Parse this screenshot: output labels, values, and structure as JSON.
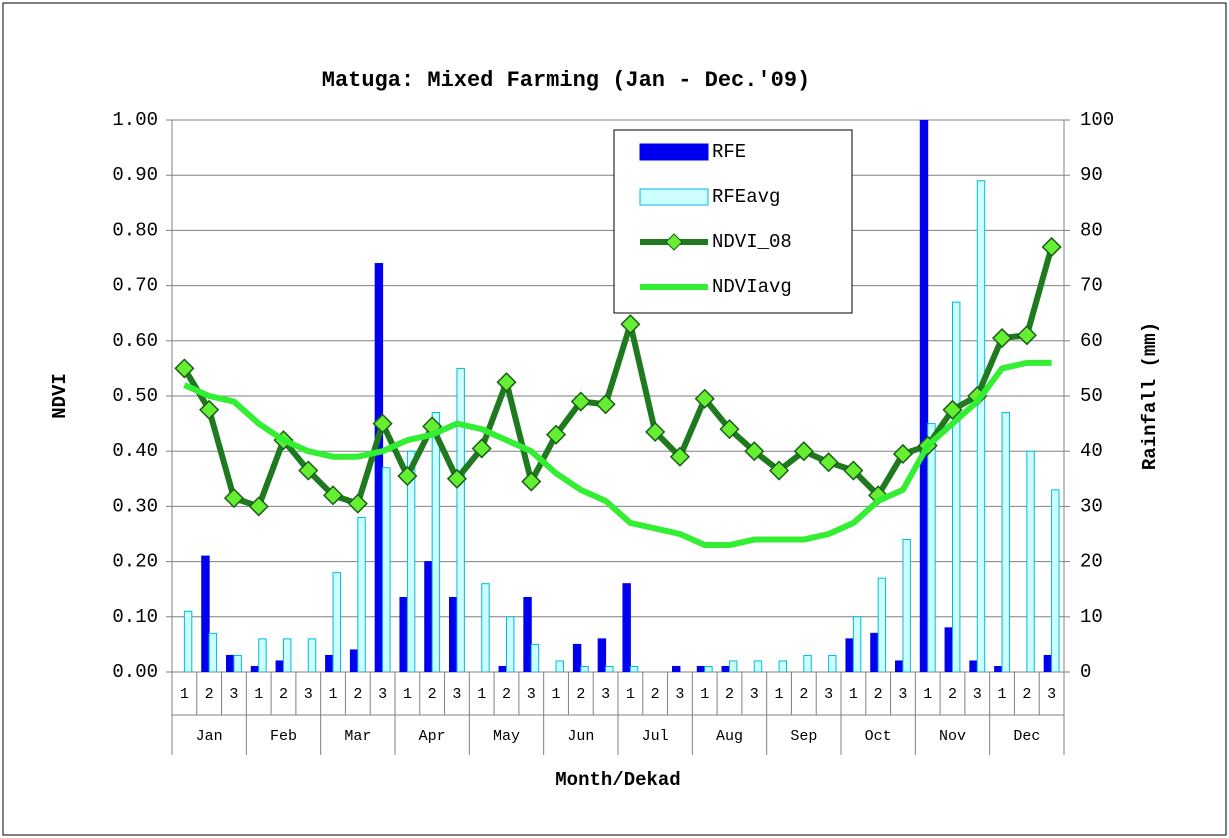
{
  "chart_data": {
    "type": "combo",
    "title": "Matuga: Mixed Farming (Jan - Dec.'09)",
    "y_label": "NDVI",
    "y2_label": "Rainfall (mm)",
    "x_label": "Month/Dekad",
    "categories": [
      "1",
      "2",
      "3",
      "1",
      "2",
      "3",
      "1",
      "2",
      "3",
      "1",
      "2",
      "3",
      "1",
      "2",
      "3",
      "1",
      "2",
      "3",
      "1",
      "2",
      "3",
      "1",
      "2",
      "3",
      "1",
      "2",
      "3",
      "1",
      "2",
      "3",
      "1",
      "2",
      "3",
      "1",
      "2",
      "3"
    ],
    "groups": [
      "Jan",
      "Feb",
      "Mar",
      "Apr",
      "May",
      "Jun",
      "Jul",
      "Aug",
      "Sep",
      "Oct",
      "Nov",
      "Dec"
    ],
    "ylim": [
      0,
      1
    ],
    "yticks": [
      {
        "value": 0,
        "label": "0.00"
      },
      {
        "value": 0.1,
        "label": "0.10"
      },
      {
        "value": 0.2,
        "label": "0.20"
      },
      {
        "value": 0.3,
        "label": "0.30"
      },
      {
        "value": 0.4,
        "label": "0.40"
      },
      {
        "value": 0.5,
        "label": "0.50"
      },
      {
        "value": 0.6,
        "label": "0.60"
      },
      {
        "value": 0.7,
        "label": "0.70"
      },
      {
        "value": 0.8,
        "label": "0.80"
      },
      {
        "value": 0.9,
        "label": "0.90"
      },
      {
        "value": 1,
        "label": "1.00"
      }
    ],
    "y2lim": [
      0,
      100
    ],
    "y2ticks": [
      0,
      10,
      20,
      30,
      40,
      50,
      60,
      70,
      80,
      90,
      100
    ],
    "grid": true,
    "legend_position": "top-right",
    "series": [
      {
        "name": "RFE",
        "type": "bar",
        "axis": "y2",
        "color": "#0000ee",
        "values": [
          0,
          21,
          3,
          1,
          2,
          0,
          3,
          4,
          74,
          13.5,
          20,
          13.5,
          0,
          1,
          13.5,
          0,
          5,
          6,
          16,
          0,
          1,
          1,
          1,
          0,
          0,
          0,
          0,
          6,
          7,
          2,
          102,
          8,
          2,
          1,
          0,
          3
        ]
      },
      {
        "name": "RFEavg",
        "type": "bar",
        "axis": "y2",
        "color": "#ccffff",
        "values": [
          11,
          7,
          3,
          6,
          6,
          6,
          18,
          28,
          37,
          40,
          47,
          55,
          16,
          10,
          5,
          2,
          1,
          1,
          1,
          0,
          0,
          1,
          2,
          2,
          2,
          3,
          3,
          10,
          17,
          24,
          45,
          67,
          89,
          47,
          40,
          33
        ]
      },
      {
        "name": "NDVI_08",
        "type": "line",
        "axis": "y",
        "color": "#1f7a1f",
        "values": [
          0.55,
          0.475,
          0.315,
          0.3,
          0.42,
          0.365,
          0.32,
          0.305,
          0.45,
          0.355,
          0.445,
          0.35,
          0.405,
          0.525,
          0.345,
          0.43,
          0.49,
          0.485,
          0.63,
          0.435,
          0.39,
          0.495,
          0.44,
          0.4,
          0.365,
          0.4,
          0.38,
          0.365,
          0.32,
          0.395,
          0.41,
          0.475,
          0.5,
          0.605,
          0.61,
          0.77
        ]
      },
      {
        "name": "NDVIavg",
        "type": "line",
        "axis": "y",
        "color": "#33ee33",
        "values": [
          0.52,
          0.5,
          0.49,
          0.45,
          0.42,
          0.4,
          0.39,
          0.39,
          0.4,
          0.42,
          0.43,
          0.45,
          0.44,
          0.42,
          0.4,
          0.36,
          0.33,
          0.31,
          0.27,
          0.26,
          0.25,
          0.23,
          0.23,
          0.24,
          0.24,
          0.24,
          0.25,
          0.27,
          0.31,
          0.33,
          0.41,
          0.45,
          0.49,
          0.55,
          0.56,
          0.56
        ]
      }
    ]
  }
}
